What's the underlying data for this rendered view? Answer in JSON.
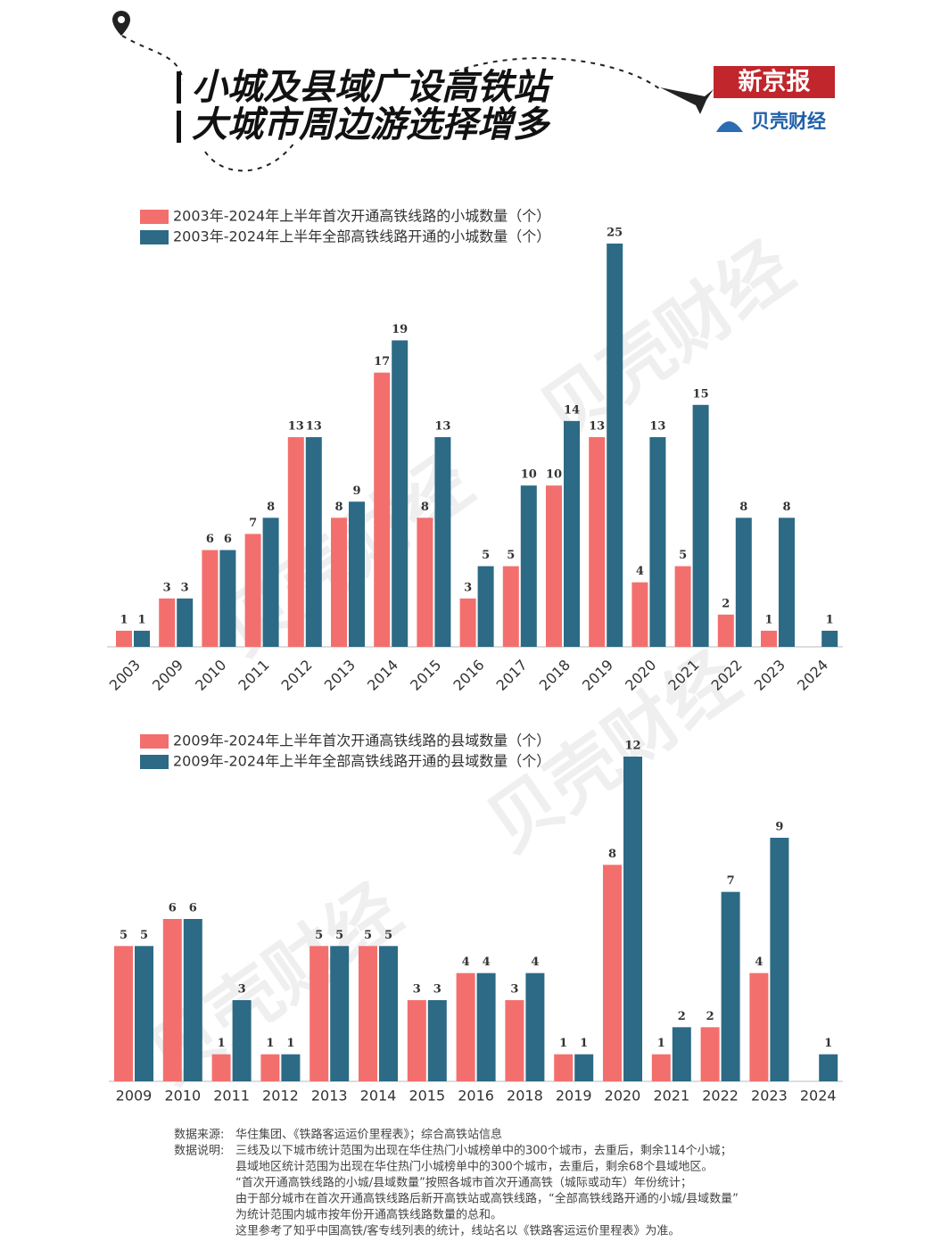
{
  "header": {
    "title_lines": [
      "小城及县域广设高铁站",
      "大城市周边游选择增多"
    ],
    "logo_1": "新京报",
    "logo_2": "贝壳财经"
  },
  "watermark": "贝壳财经",
  "chart_data": [
    {
      "type": "bar",
      "categories": [
        "2003",
        "2009",
        "2010",
        "2011",
        "2012",
        "2013",
        "2014",
        "2015",
        "2016",
        "2017",
        "2018",
        "2019",
        "2020",
        "2021",
        "2022",
        "2023",
        "2024"
      ],
      "series": [
        {
          "name": "2003年-2024年上半年首次开通高铁线路的小城数量（个）",
          "color": "#f36f6d",
          "values": [
            1,
            3,
            6,
            7,
            13,
            8,
            17,
            8,
            3,
            5,
            10,
            13,
            4,
            5,
            2,
            1,
            null
          ]
        },
        {
          "name": "2003年-2024年上半年全部高铁线路开通的小城数量（个）",
          "color": "#2c6a85",
          "values": [
            1,
            3,
            6,
            8,
            13,
            9,
            19,
            13,
            5,
            10,
            14,
            25,
            13,
            15,
            8,
            8,
            1
          ]
        }
      ],
      "ylim": [
        0,
        25
      ]
    },
    {
      "type": "bar",
      "categories": [
        "2009",
        "2010",
        "2011",
        "2012",
        "2013",
        "2014",
        "2015",
        "2016",
        "2018",
        "2019",
        "2020",
        "2021",
        "2022",
        "2023",
        "2024"
      ],
      "series": [
        {
          "name": "2009年-2024年上半年首次开通高铁线路的县域数量（个）",
          "color": "#f36f6d",
          "values": [
            5,
            6,
            1,
            1,
            5,
            5,
            3,
            4,
            3,
            1,
            8,
            1,
            2,
            4,
            null
          ]
        },
        {
          "name": "2009年-2024年上半年全部高铁线路开通的县域数量（个）",
          "color": "#2c6a85",
          "values": [
            5,
            6,
            3,
            1,
            5,
            5,
            3,
            4,
            4,
            1,
            12,
            2,
            7,
            9,
            1
          ]
        }
      ],
      "ylim": [
        0,
        12
      ]
    }
  ],
  "footer": {
    "lines": [
      [
        "数据来源:",
        "华住集团、《铁路客运运价里程表》；综合高铁站信息"
      ],
      [
        "数据说明:",
        "三线及以下城市统计范围为出现在华住热门小城榜单中的300个城市，去重后，剩余114个小城；"
      ],
      [
        "",
        "县域地区统计范围为出现在华住热门小城榜单中的300个城市，去重后，剩余68个县域地区。"
      ],
      [
        "",
        "“首次开通高铁线路的小城/县域数量”按照各城市首次开通高铁（城际或动车）年份统计；"
      ],
      [
        "",
        "由于部分城市在首次开通高铁线路后新开高铁站或高铁线路，“全部高铁线路开通的小城/县域数量”"
      ],
      [
        "",
        "为统计范围内城市按年份开通高铁线路数量的总和。"
      ],
      [
        "",
        "这里参考了知乎中国高铁/客专线列表的统计，线站名以《铁路客运运价里程表》为准。"
      ]
    ]
  }
}
